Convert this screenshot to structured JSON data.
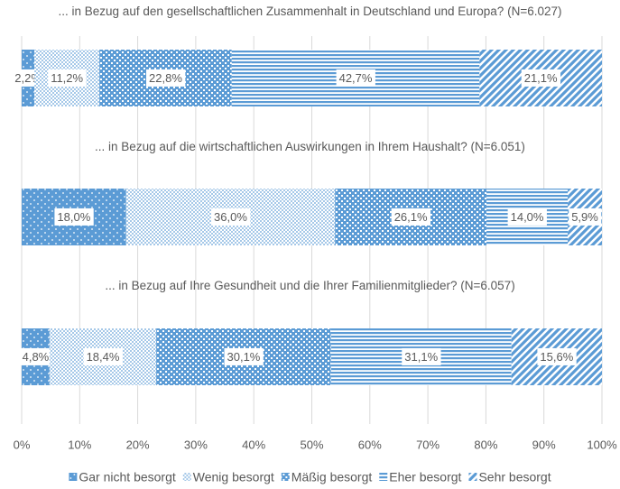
{
  "chart_data": {
    "type": "stacked-barh",
    "categories": [
      "... in Bezug auf den gesellschaftlichen Zusammenhalt in Deutschland und Europa? (N=6.027)",
      "... in Bezug auf die wirtschaftlichen Auswirkungen in Ihrem Haushalt? (N=6.051)",
      "... in Bezug auf Ihre Gesundheit und die Ihrer Familienmitglieder? (N=6.057)"
    ],
    "series": [
      {
        "name": "Gar nicht besorgt",
        "color": "#5b9bd5",
        "pattern": "dots",
        "values": [
          2.2,
          18.0,
          4.8
        ],
        "value_labels": [
          "2,2%",
          "18,0%",
          "4,8%"
        ]
      },
      {
        "name": "Wenig besorgt",
        "color": "#5b9bd5",
        "pattern": "small-grid",
        "values": [
          11.2,
          36.0,
          18.4
        ],
        "value_labels": [
          "11,2%",
          "36,0%",
          "18,4%"
        ]
      },
      {
        "name": "Mäßig besorgt",
        "color": "#5b9bd5",
        "pattern": "checker",
        "values": [
          22.8,
          26.1,
          30.1
        ],
        "value_labels": [
          "22,8%",
          "26,1%",
          "30,1%"
        ]
      },
      {
        "name": "Eher besorgt",
        "color": "#5b9bd5",
        "pattern": "horizontal",
        "values": [
          42.7,
          14.0,
          31.1
        ],
        "value_labels": [
          "42,7%",
          "14,0%",
          "31,1%"
        ]
      },
      {
        "name": "Sehr besorgt",
        "color": "#5b9bd5",
        "pattern": "diagonal",
        "values": [
          21.1,
          5.9,
          15.6
        ],
        "value_labels": [
          "21,1%",
          "5,9%",
          "15,6%"
        ]
      }
    ],
    "xlim": [
      0,
      100
    ],
    "xticks": [
      {
        "value": 0,
        "label": "0%"
      },
      {
        "value": 10,
        "label": "10%"
      },
      {
        "value": 20,
        "label": "20%"
      },
      {
        "value": 30,
        "label": "30%"
      },
      {
        "value": 40,
        "label": "40%"
      },
      {
        "value": 50,
        "label": "50%"
      },
      {
        "value": 60,
        "label": "60%"
      },
      {
        "value": 70,
        "label": "70%"
      },
      {
        "value": 80,
        "label": "80%"
      },
      {
        "value": 90,
        "label": "90%"
      },
      {
        "value": 100,
        "label": "100%"
      }
    ],
    "grid": true,
    "legend": "bottom"
  }
}
